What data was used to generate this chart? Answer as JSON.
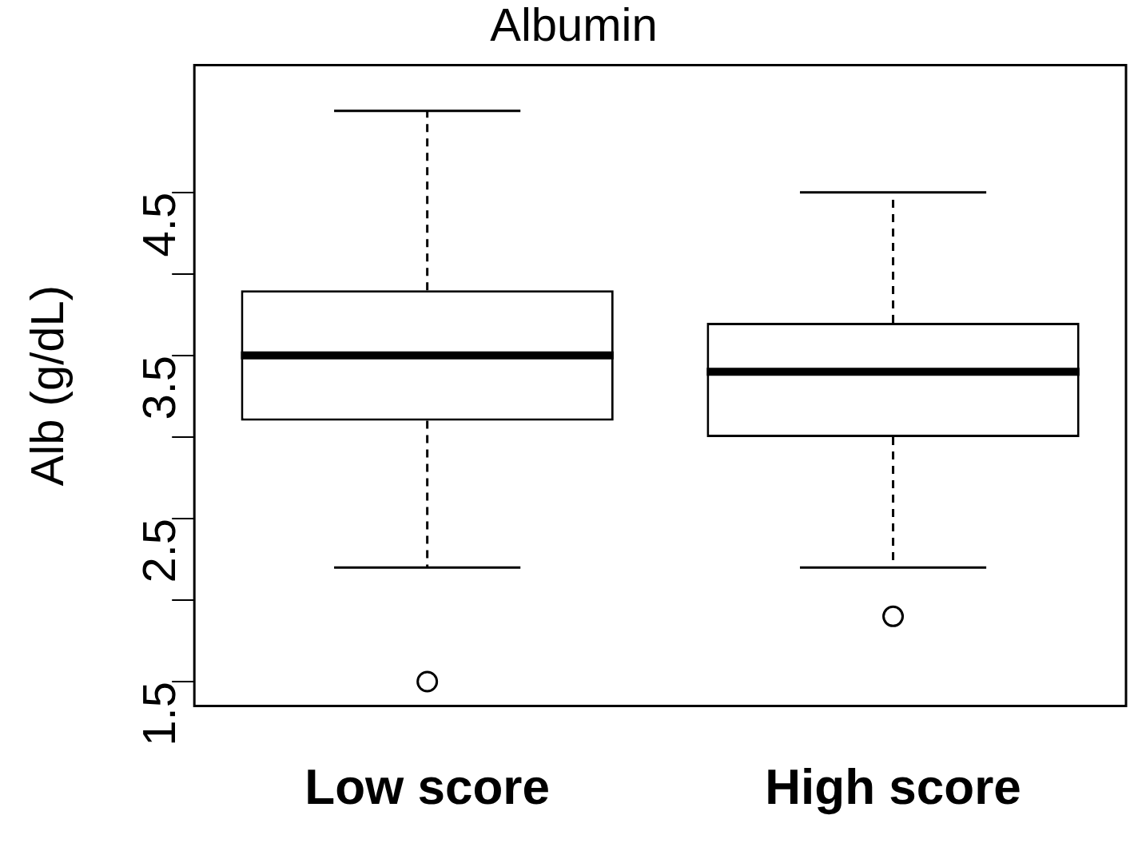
{
  "chart_data": {
    "type": "box",
    "title": "Albumin",
    "ylabel": "Alb (g/dL)",
    "categories": [
      "Low score",
      "High score"
    ],
    "boxes": [
      {
        "low": 2.2,
        "q1": 3.1,
        "median": 3.5,
        "q3": 3.9,
        "high": 5.0,
        "outliers": [
          1.5
        ]
      },
      {
        "low": 2.2,
        "q1": 3.0,
        "median": 3.4,
        "q3": 3.7,
        "high": 4.5,
        "outliers": [
          1.9
        ]
      }
    ],
    "ylim": [
      1.35,
      5.28
    ],
    "yticks": [
      1.5,
      {
        "value": 2,
        "label": null
      },
      2.5,
      {
        "value": 3,
        "label": null
      },
      3.5,
      {
        "value": 4,
        "label": null
      },
      4.5
    ],
    "grid": false,
    "legend": false
  }
}
